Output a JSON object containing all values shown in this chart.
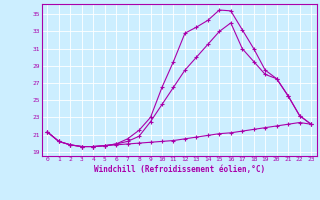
{
  "xlabel": "Windchill (Refroidissement éolien,°C)",
  "background_color": "#cceeff",
  "line_color": "#aa00aa",
  "grid_color": "#ffffff",
  "xlim": [
    -0.5,
    23.5
  ],
  "ylim": [
    18.5,
    36.2
  ],
  "yticks": [
    19,
    21,
    23,
    25,
    27,
    29,
    31,
    33,
    35
  ],
  "xticks": [
    0,
    1,
    2,
    3,
    4,
    5,
    6,
    7,
    8,
    9,
    10,
    11,
    12,
    13,
    14,
    15,
    16,
    17,
    18,
    19,
    20,
    21,
    22,
    23
  ],
  "line1_x": [
    0,
    1,
    2,
    3,
    4,
    5,
    6,
    7,
    8,
    9,
    10,
    11,
    12,
    13,
    14,
    15,
    16,
    17,
    18,
    19,
    20,
    21,
    22,
    23
  ],
  "line1_y": [
    21.3,
    20.2,
    19.8,
    19.6,
    19.6,
    19.7,
    19.8,
    19.9,
    20.0,
    20.1,
    20.2,
    20.3,
    20.5,
    20.7,
    20.9,
    21.1,
    21.2,
    21.4,
    21.6,
    21.8,
    22.0,
    22.2,
    22.4,
    22.2
  ],
  "line2_x": [
    0,
    1,
    2,
    3,
    4,
    5,
    6,
    7,
    8,
    9,
    10,
    11,
    12,
    13,
    14,
    15,
    16,
    17,
    18,
    19,
    20,
    21,
    22,
    23
  ],
  "line2_y": [
    21.3,
    20.2,
    19.8,
    19.6,
    19.6,
    19.7,
    19.9,
    20.5,
    21.5,
    23.0,
    26.5,
    29.5,
    32.8,
    33.5,
    34.3,
    35.5,
    35.4,
    33.2,
    31.0,
    28.5,
    27.5,
    25.5,
    23.2,
    22.2
  ],
  "line3_x": [
    0,
    1,
    2,
    3,
    4,
    5,
    6,
    7,
    8,
    9,
    10,
    11,
    12,
    13,
    14,
    15,
    16,
    17,
    18,
    19,
    20,
    21,
    22,
    23
  ],
  "line3_y": [
    21.3,
    20.2,
    19.8,
    19.6,
    19.6,
    19.7,
    19.9,
    20.2,
    20.8,
    22.5,
    24.5,
    26.5,
    28.5,
    30.0,
    31.5,
    33.0,
    34.0,
    31.0,
    29.5,
    28.0,
    27.5,
    25.5,
    23.2,
    22.2
  ]
}
